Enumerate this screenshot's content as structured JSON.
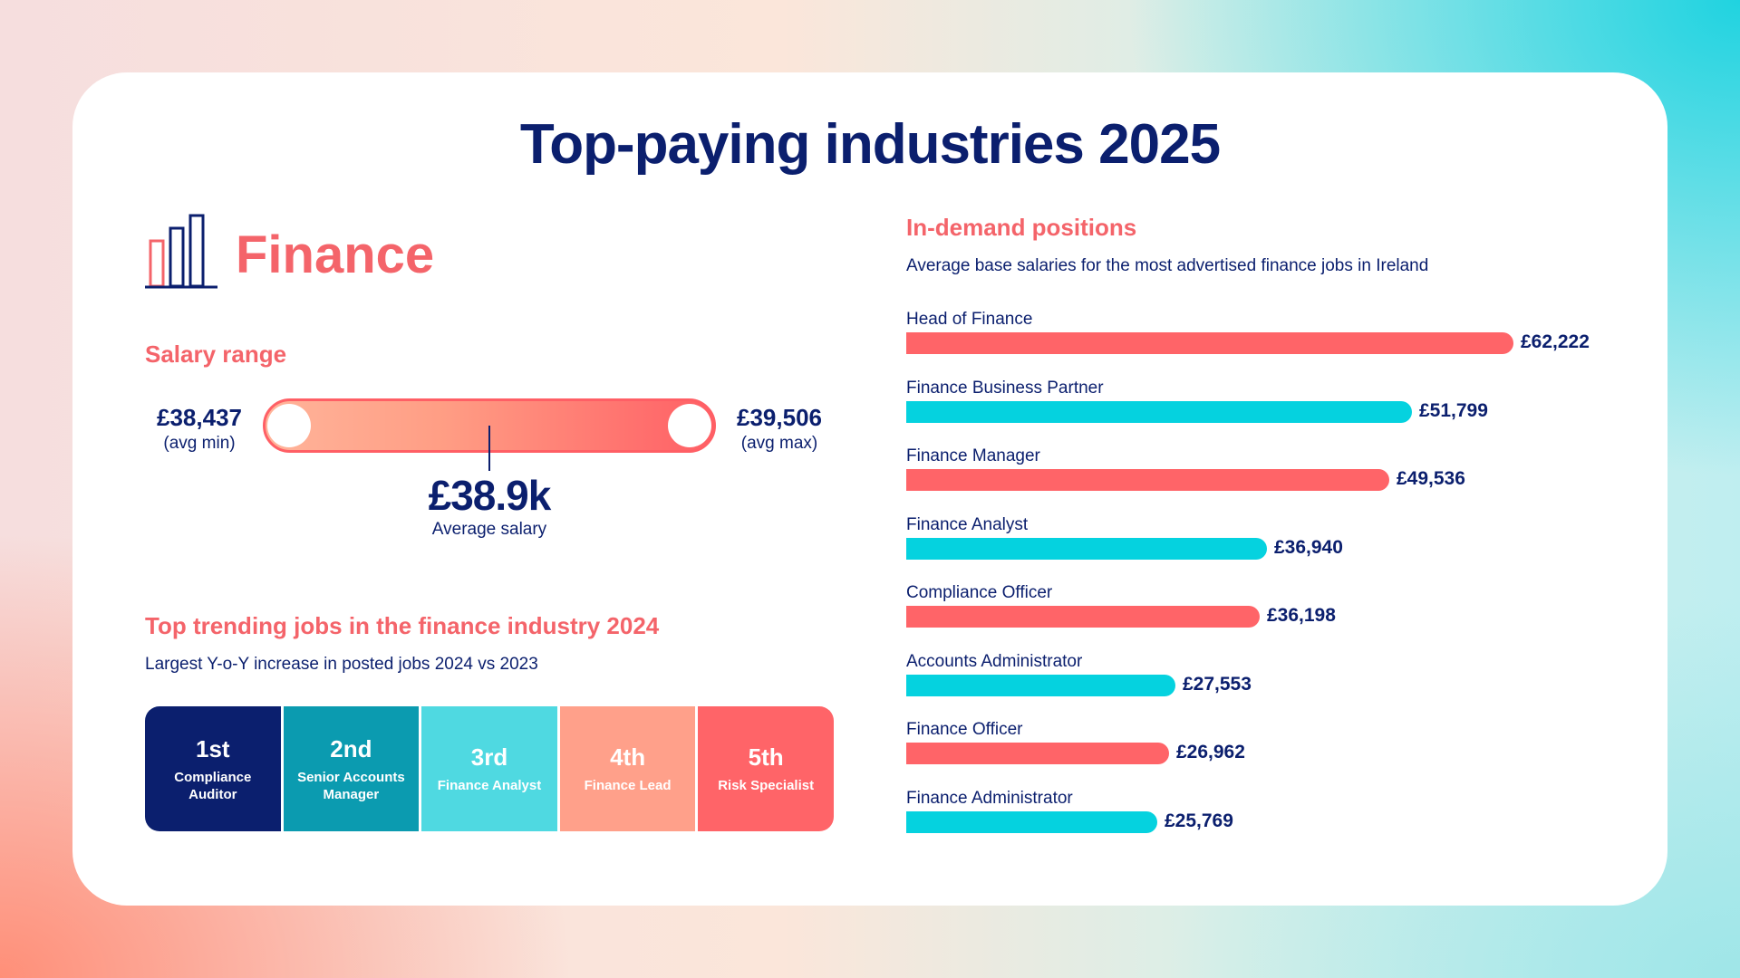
{
  "title": "Top-paying industries 2025",
  "industry": {
    "name": "Finance",
    "icon": "bar-chart-icon"
  },
  "salary_range": {
    "heading": "Salary range",
    "min_value": "£38,437",
    "min_label": "(avg min)",
    "max_value": "£39,506",
    "max_label": "(avg max)",
    "average_value": "£38.9k",
    "average_label": "Average salary"
  },
  "trending": {
    "heading": "Top trending jobs in the finance industry 2024",
    "subtitle": "Largest Y-o-Y increase in posted jobs 2024 vs 2023",
    "ranks": [
      {
        "rank": "1st",
        "job": "Compliance Auditor",
        "color": "#0b1f6e"
      },
      {
        "rank": "2nd",
        "job": "Senior Accounts Manager",
        "color": "#0b9bb0"
      },
      {
        "rank": "3rd",
        "job": "Finance Analyst",
        "color": "#4fd9e1"
      },
      {
        "rank": "4th",
        "job": "Finance Lead",
        "color": "#ffa08a"
      },
      {
        "rank": "5th",
        "job": "Risk Specialist",
        "color": "#ff6468"
      }
    ]
  },
  "colors": {
    "navy": "#0b1f6e",
    "coral": "#f4646a",
    "bar_coral": "#ff6468",
    "bar_cyan": "#05d2df"
  },
  "chart_data": {
    "type": "bar",
    "orientation": "horizontal",
    "title": "In-demand positions",
    "subtitle": "Average base salaries for the most advertised finance jobs in Ireland",
    "categories": [
      "Head of Finance",
      "Finance Business Partner",
      "Finance Manager",
      "Finance Analyst",
      "Compliance Officer",
      "Accounts Administrator",
      "Finance Officer",
      "Finance Administrator"
    ],
    "values": [
      62222,
      51799,
      49536,
      36940,
      36198,
      27553,
      26962,
      25769
    ],
    "value_labels": [
      "£62,222",
      "£51,799",
      "£49,536",
      "£36,940",
      "£36,198",
      "£27,553",
      "£26,962",
      "£25,769"
    ],
    "bar_colors": [
      "#ff6468",
      "#05d2df",
      "#ff6468",
      "#05d2df",
      "#ff6468",
      "#05d2df",
      "#ff6468",
      "#05d2df"
    ],
    "xlim": [
      0,
      62222
    ],
    "grid": false,
    "legend": "none"
  }
}
